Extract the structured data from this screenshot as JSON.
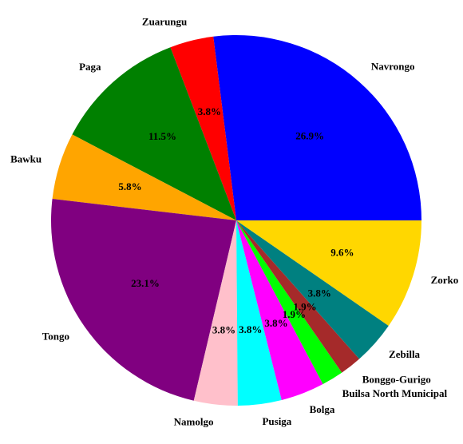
{
  "chart_data": {
    "type": "pie",
    "categories": [
      "Navrongo",
      "Zuarungu",
      "Paga",
      "Bawku",
      "Tongo",
      "Namolgo",
      "Pusiga",
      "Bolga",
      "Builsa North Municipal",
      "Bonggo-Gurigo",
      "Zebilla",
      "Zorko"
    ],
    "values": [
      26.9,
      3.8,
      11.5,
      5.8,
      23.1,
      3.8,
      3.8,
      3.8,
      1.9,
      1.9,
      3.8,
      9.6
    ],
    "value_labels": [
      "26.9%",
      "3.8%",
      "11.5%",
      "5.8%",
      "23.1%",
      "3.8%",
      "3.8%",
      "3.8%",
      "1.9%",
      "1.9%",
      "3.8%",
      "9.6%"
    ],
    "colors": [
      "#0000ff",
      "#ff0000",
      "#008000",
      "#ffa500",
      "#800080",
      "#ffc0cb",
      "#00ffff",
      "#ff00ff",
      "#00ff00",
      "#a52a2a",
      "#008080",
      "#ffd700"
    ]
  }
}
